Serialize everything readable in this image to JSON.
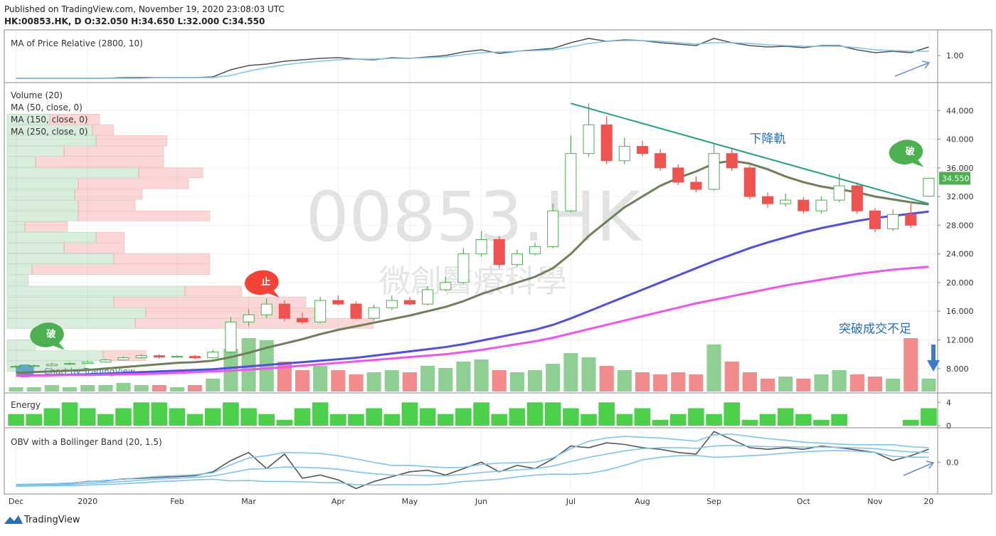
{
  "header": {
    "published": "Published on TradingView.com, November 19, 2020 23:08:03 UTC",
    "symbol": "HK:00853.HK, D  O:32.050 H:34.650 L:32.000 C:34.550"
  },
  "footer": {
    "brand": "TradingView",
    "badge": "Chart by TradingView"
  },
  "chart_data": [
    {
      "type": "line",
      "title": "MA of Price Relative (2800, 10)",
      "ylim": [
        0.64,
        1.34
      ],
      "yticks": [
        {
          "value": 1.0,
          "label": "1.00"
        }
      ],
      "series": [
        {
          "color": "#555555",
          "values": [
            0.68,
            0.68,
            0.68,
            0.68,
            0.68,
            0.68,
            0.69,
            0.69,
            0.69,
            0.69,
            0.69,
            0.7,
            0.8,
            0.86,
            0.88,
            0.92,
            0.94,
            0.96,
            0.97,
            0.95,
            0.94,
            0.97,
            0.96,
            0.98,
            1.0,
            1.05,
            1.08,
            1.03,
            1.06,
            1.08,
            1.1,
            1.18,
            1.24,
            1.2,
            1.22,
            1.21,
            1.18,
            1.16,
            1.14,
            1.24,
            1.18,
            1.14,
            1.12,
            1.13,
            1.11,
            1.14,
            1.14,
            1.08,
            1.04,
            1.06,
            1.04,
            1.12
          ]
        },
        {
          "color": "#7ec3ec",
          "values": [
            0.68,
            0.68,
            0.68,
            0.68,
            0.68,
            0.68,
            0.68,
            0.68,
            0.69,
            0.69,
            0.69,
            0.69,
            0.72,
            0.78,
            0.83,
            0.87,
            0.9,
            0.92,
            0.94,
            0.95,
            0.95,
            0.96,
            0.96,
            0.97,
            0.98,
            1.01,
            1.04,
            1.05,
            1.06,
            1.07,
            1.08,
            1.12,
            1.17,
            1.2,
            1.21,
            1.21,
            1.2,
            1.18,
            1.16,
            1.18,
            1.18,
            1.17,
            1.15,
            1.14,
            1.13,
            1.13,
            1.13,
            1.11,
            1.08,
            1.07,
            1.06,
            1.06
          ]
        }
      ]
    },
    {
      "type": "candlestick",
      "ylim": [
        4.8,
        47.7
      ],
      "grid": true,
      "yticks": [
        {
          "value": 8,
          "label": "8.000"
        },
        {
          "value": 12,
          "label": "12.000"
        },
        {
          "value": 16,
          "label": "16.000"
        },
        {
          "value": 20,
          "label": "20.000"
        },
        {
          "value": 24,
          "label": "24.000"
        },
        {
          "value": 28,
          "label": "28.000"
        },
        {
          "value": 32,
          "label": "32.000"
        },
        {
          "value": 36,
          "label": "36.000"
        },
        {
          "value": 40,
          "label": "40.000"
        },
        {
          "value": 44,
          "label": "44.000"
        }
      ],
      "up_color": "#4caf50",
      "down_color": "#ef5350",
      "open": [
        8.2,
        8.3,
        8.4,
        8.6,
        8.7,
        8.9,
        9.2,
        9.5,
        9.8,
        9.6,
        9.7,
        9.5,
        10.3,
        14.5,
        15.5,
        17.0,
        15.0,
        14.5,
        17.5,
        17.0,
        15.0,
        16.5,
        17.5,
        17.0,
        19.0,
        20.0,
        24.0,
        26.0,
        22.5,
        24.0,
        25.0,
        30.0,
        38.0,
        42.0,
        37.0,
        39.0,
        38.0,
        36.0,
        34.0,
        33.0,
        38.0,
        36.0,
        32.0,
        31.0,
        31.5,
        30.0,
        31.5,
        33.5,
        30.0,
        27.5,
        29.5,
        32.05
      ],
      "high": [
        8.5,
        8.6,
        8.8,
        8.9,
        9.1,
        9.4,
        9.7,
        10.0,
        10.0,
        9.9,
        9.9,
        10.6,
        15.2,
        16.3,
        17.8,
        17.5,
        15.8,
        18.0,
        18.2,
        17.4,
        16.9,
        18.2,
        18.0,
        19.5,
        20.8,
        24.8,
        27.2,
        26.5,
        24.6,
        25.6,
        31.0,
        40.5,
        45.0,
        43.2,
        40.2,
        39.8,
        38.6,
        36.5,
        34.8,
        39.5,
        38.8,
        36.4,
        32.6,
        32.4,
        31.9,
        32.0,
        35.2,
        34.0,
        30.4,
        30.2,
        31.0,
        34.65
      ],
      "low": [
        8.0,
        8.1,
        8.3,
        8.5,
        8.6,
        8.8,
        9.1,
        9.4,
        9.4,
        9.5,
        9.3,
        9.4,
        10.1,
        13.9,
        15.0,
        14.6,
        14.2,
        14.3,
        16.8,
        14.8,
        14.7,
        16.2,
        16.8,
        16.8,
        18.8,
        19.8,
        23.6,
        22.0,
        22.2,
        23.8,
        24.8,
        29.8,
        37.5,
        36.5,
        36.5,
        37.6,
        35.6,
        33.6,
        32.6,
        32.8,
        35.6,
        31.6,
        30.4,
        30.6,
        29.6,
        29.6,
        31.2,
        29.6,
        27.0,
        27.2,
        27.6,
        32.0
      ],
      "close": [
        8.3,
        8.4,
        8.6,
        8.7,
        8.9,
        9.2,
        9.5,
        9.8,
        9.6,
        9.7,
        9.5,
        10.3,
        14.5,
        15.5,
        17.0,
        15.0,
        14.5,
        17.5,
        17.0,
        15.0,
        16.5,
        17.5,
        17.0,
        19.0,
        20.0,
        24.0,
        26.0,
        22.5,
        24.0,
        25.0,
        30.0,
        38.0,
        42.0,
        37.0,
        39.0,
        38.0,
        36.0,
        34.0,
        33.0,
        38.0,
        36.0,
        32.0,
        31.0,
        31.5,
        30.0,
        31.5,
        33.5,
        30.0,
        27.5,
        29.5,
        28.0,
        34.55
      ],
      "volume": {
        "name": "Volume (20)",
        "vlim": [
          0,
          30
        ],
        "up_color": "#8fcf94",
        "down_color": "#f28b8b",
        "values": [
          2,
          2,
          3,
          2,
          3,
          3,
          4,
          3,
          3,
          2,
          3,
          6,
          20,
          25,
          24,
          14,
          10,
          12,
          10,
          8,
          9,
          10,
          9,
          12,
          11,
          14,
          15,
          10,
          9,
          10,
          13,
          18,
          16,
          12,
          10,
          9,
          8,
          9,
          8,
          22,
          14,
          9,
          6,
          7,
          6,
          8,
          10,
          8,
          7,
          6,
          25,
          6
        ]
      },
      "volume_profile": {
        "bins": [
          7.5,
          9,
          10.5,
          12,
          13.5,
          15,
          16.5,
          18,
          19.5,
          21,
          22.5,
          24,
          25.5,
          27,
          28.5,
          30,
          31.5,
          33,
          34.5,
          36,
          37.5,
          39,
          40.5,
          42,
          43.5
        ],
        "up": [
          110,
          135,
          40,
          0,
          180,
          195,
          150,
          250,
          30,
          35,
          150,
          80,
          125,
          25,
          100,
          100,
          95,
          100,
          185,
          40,
          80,
          125,
          120,
          60
        ],
        "down": [
          0,
          60,
          0,
          0,
          335,
          250,
          270,
          80,
          0,
          250,
          135,
          85,
          40,
          60,
          185,
          80,
          95,
          155,
          90,
          180,
          140,
          100,
          30,
          70
        ],
        "up_color": "rgba(120,190,130,0.28)",
        "down_color": "rgba(240,110,110,0.28)"
      },
      "series": [
        {
          "name": "MA (50, close, 0)",
          "color": "#6f7f5a",
          "values": [
            7.4,
            7.5,
            7.6,
            7.7,
            7.8,
            8.0,
            8.2,
            8.4,
            8.6,
            8.8,
            8.9,
            9.1,
            9.6,
            10.2,
            10.9,
            11.5,
            12.1,
            12.8,
            13.4,
            13.9,
            14.4,
            14.9,
            15.4,
            16.0,
            16.6,
            17.4,
            18.4,
            19.2,
            20.0,
            20.8,
            22.0,
            24.0,
            26.5,
            28.5,
            30.5,
            32.0,
            33.5,
            34.6,
            35.5,
            36.6,
            37.0,
            36.6,
            35.8,
            34.8,
            34.0,
            33.4,
            33.0,
            32.6,
            32.0,
            31.6,
            31.2,
            30.9
          ]
        },
        {
          "name": "MA (150, close, 0)",
          "color": "#5050dd",
          "values": [
            7.0,
            7.05,
            7.1,
            7.15,
            7.2,
            7.3,
            7.4,
            7.5,
            7.6,
            7.7,
            7.8,
            7.9,
            8.1,
            8.3,
            8.5,
            8.7,
            8.9,
            9.1,
            9.3,
            9.5,
            9.8,
            10.1,
            10.4,
            10.7,
            11.0,
            11.4,
            11.9,
            12.4,
            12.9,
            13.4,
            14.1,
            15.0,
            16.0,
            17.0,
            18.0,
            19.0,
            20.0,
            21.0,
            22.0,
            23.0,
            23.9,
            24.8,
            25.6,
            26.3,
            27.0,
            27.6,
            28.1,
            28.6,
            29.0,
            29.3,
            29.6,
            29.9
          ]
        },
        {
          "name": "MA (250, close, 0)",
          "color": "#ee55ee",
          "values": [
            7.0,
            7.0,
            7.05,
            7.1,
            7.1,
            7.15,
            7.2,
            7.25,
            7.3,
            7.4,
            7.5,
            7.6,
            7.7,
            7.85,
            8.0,
            8.2,
            8.4,
            8.6,
            8.8,
            9.0,
            9.2,
            9.4,
            9.6,
            9.8,
            10.0,
            10.3,
            10.6,
            11.0,
            11.4,
            11.8,
            12.3,
            12.9,
            13.5,
            14.1,
            14.7,
            15.3,
            15.9,
            16.5,
            17.1,
            17.6,
            18.1,
            18.6,
            19.1,
            19.6,
            20.0,
            20.4,
            20.8,
            21.2,
            21.5,
            21.8,
            22.0,
            22.2
          ]
        }
      ],
      "trendline": {
        "color": "#26a085",
        "x": [
          31,
          51
        ],
        "y": [
          45.0,
          31.0
        ]
      },
      "last_price": {
        "value": 34.55,
        "label": "34.550",
        "color": "#4caf50"
      },
      "callouts": [
        {
          "text": "破",
          "x": 2,
          "y": 11.0,
          "color": "#4caf50"
        },
        {
          "text": "止",
          "x": 14,
          "y": 18.3,
          "color": "#f44336"
        },
        {
          "text": "破",
          "x": 50,
          "y": 36.5,
          "color": "#4caf50"
        }
      ],
      "annotations": [
        {
          "text": "下降軌",
          "x": 42,
          "y": 39.5,
          "color": "#2a6eb8"
        },
        {
          "text": "突破成交不足",
          "x": 48,
          "y": 13.0,
          "color": "#2a6eb8"
        }
      ],
      "watermark": {
        "symbol": "00853.HK",
        "name": "微創醫療科學"
      }
    },
    {
      "type": "bar",
      "title": "Energy",
      "color": "#4cd04c",
      "ylim": [
        0,
        5.5
      ],
      "yticks": [
        0,
        4
      ],
      "values": [
        2,
        2,
        3,
        4,
        3,
        2,
        3,
        4,
        4,
        3,
        2,
        3,
        4,
        3,
        2,
        1,
        3,
        4,
        2,
        2,
        3,
        2,
        4,
        3,
        2,
        3,
        4,
        2,
        3,
        4,
        4,
        3,
        2,
        4,
        2,
        3,
        1,
        2,
        3,
        2,
        4,
        1,
        2,
        3,
        2,
        1,
        2,
        0,
        0,
        0,
        1,
        3
      ]
    },
    {
      "type": "line",
      "title": "OBV with a Bollinger Band (20, 1.5)",
      "ylim": [
        -0.9,
        1.0
      ],
      "yticks": [
        {
          "value": 0,
          "label": "0.0"
        }
      ],
      "categories": [
        "Dec",
        null,
        null,
        null,
        "2020",
        null,
        null,
        null,
        null,
        "Feb",
        null,
        null,
        null,
        "Mar",
        null,
        null,
        null,
        null,
        "Apr",
        null,
        null,
        null,
        "May",
        null,
        null,
        null,
        "Jun",
        null,
        null,
        null,
        null,
        "Jul",
        null,
        null,
        null,
        "Aug",
        null,
        null,
        null,
        "Sep",
        null,
        null,
        null,
        null,
        "Oct",
        null,
        null,
        null,
        "Nov",
        null,
        null,
        "20"
      ],
      "series": [
        {
          "color": "#555555",
          "values": [
            -0.72,
            -0.7,
            -0.68,
            -0.66,
            -0.6,
            -0.58,
            -0.52,
            -0.5,
            -0.47,
            -0.45,
            -0.42,
            -0.3,
            0.05,
            0.3,
            -0.2,
            0.25,
            -0.5,
            -0.4,
            -0.55,
            -0.82,
            -0.6,
            -0.45,
            -0.3,
            -0.25,
            -0.4,
            -0.2,
            0.0,
            -0.3,
            -0.1,
            -0.2,
            0.1,
            0.5,
            0.45,
            0.6,
            0.55,
            0.45,
            0.4,
            0.3,
            0.25,
            0.95,
            0.7,
            0.45,
            0.4,
            0.45,
            0.4,
            0.5,
            0.45,
            0.38,
            0.3,
            0.05,
            0.2,
            0.4
          ]
        },
        {
          "color": "#7ec3ec",
          "values": [
            -0.72,
            -0.71,
            -0.7,
            -0.69,
            -0.66,
            -0.63,
            -0.6,
            -0.56,
            -0.52,
            -0.5,
            -0.47,
            -0.43,
            -0.33,
            -0.22,
            -0.2,
            -0.15,
            -0.16,
            -0.18,
            -0.22,
            -0.3,
            -0.36,
            -0.4,
            -0.4,
            -0.42,
            -0.42,
            -0.38,
            -0.32,
            -0.28,
            -0.24,
            -0.2,
            -0.12,
            0.02,
            0.15,
            0.25,
            0.35,
            0.42,
            0.45,
            0.45,
            0.43,
            0.5,
            0.52,
            0.5,
            0.48,
            0.48,
            0.47,
            0.47,
            0.46,
            0.44,
            0.42,
            0.36,
            0.32,
            0.3
          ]
        },
        {
          "color": "#7ec3ec",
          "values": [
            -0.69,
            -0.68,
            -0.67,
            -0.65,
            -0.61,
            -0.57,
            -0.53,
            -0.48,
            -0.44,
            -0.42,
            -0.39,
            -0.33,
            -0.08,
            0.13,
            0.2,
            0.3,
            0.29,
            0.27,
            0.2,
            0.1,
            -0.01,
            -0.1,
            -0.1,
            -0.14,
            -0.17,
            -0.16,
            -0.07,
            -0.03,
            -0.02,
            0.0,
            0.13,
            0.42,
            0.65,
            0.75,
            0.8,
            0.77,
            0.75,
            0.7,
            0.65,
            0.85,
            0.87,
            0.8,
            0.73,
            0.68,
            0.62,
            0.59,
            0.56,
            0.54,
            0.54,
            0.54,
            0.48,
            0.45
          ]
        },
        {
          "color": "#7ec3ec",
          "values": [
            -0.75,
            -0.74,
            -0.73,
            -0.73,
            -0.71,
            -0.69,
            -0.67,
            -0.64,
            -0.6,
            -0.58,
            -0.55,
            -0.53,
            -0.58,
            -0.57,
            -0.6,
            -0.6,
            -0.61,
            -0.63,
            -0.64,
            -0.7,
            -0.71,
            -0.7,
            -0.7,
            -0.7,
            -0.67,
            -0.6,
            -0.57,
            -0.53,
            -0.46,
            -0.4,
            -0.37,
            -0.38,
            -0.35,
            -0.25,
            -0.1,
            0.07,
            0.15,
            0.2,
            0.21,
            0.15,
            0.17,
            0.2,
            0.23,
            0.28,
            0.32,
            0.35,
            0.36,
            0.34,
            0.3,
            0.18,
            0.16,
            0.15
          ]
        }
      ]
    }
  ]
}
